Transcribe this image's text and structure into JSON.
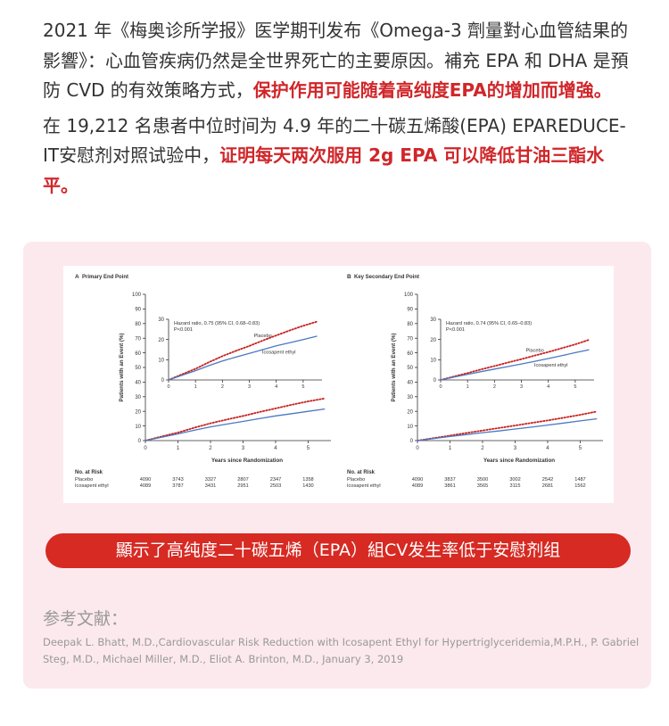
{
  "intro": {
    "p1_a": "2021 年《梅奥诊所学报》医学期刊发布《Omega-3 劑量對心血管結果的影響》：心血管疾病仍然是全世界死亡的主要原因。補充 EPA 和 DHA 是預防 CVD 的有效策略方式，",
    "p1_hl": "保护作用可能随着高纯度EPA的增加而增強。",
    "p2_a": "在 19,212 名患者中位时间为 4.9 年的二十碳五烯酸(EPA) EPAREDUCE-IT安慰剂对照试验中，",
    "p2_hl": "证明每天两次服用 2g EPA 可以降低甘油三酯水平。"
  },
  "banner_text": "顯示了高纯度二十碳五烯（EPA）組CV发生率低于安慰剂组",
  "reference": {
    "heading": "参考文献：",
    "body": "Deepak L. Bhatt, M.D.,Cardiovascular Risk Reduction with Icosapent Ethyl for Hypertriglyceridemia,M.P.H., P. Gabriel Steg, M.D., Michael Miller, M.D., Eliot A. Brinton, M.D., January 3, 2019"
  },
  "colors": {
    "placebo": "#c8201e",
    "icosapent": "#4a78c2",
    "accent": "#d0262a",
    "card_bg": "#fce9ee"
  },
  "chart_data": [
    {
      "type": "line",
      "panel_label": "A",
      "panel_title": "Primary End Point",
      "xlabel": "Years since Randomization",
      "ylabel": "Patients with an Event (%)",
      "xlim": [
        0,
        5.7
      ],
      "ylim": [
        0,
        100
      ],
      "x_ticks": [
        0,
        1,
        2,
        3,
        4,
        5
      ],
      "y_ticks": [
        0,
        10,
        20,
        30,
        40,
        50,
        60,
        70,
        80,
        90,
        100
      ],
      "series": [
        {
          "name": "Placebo",
          "style": "dotted",
          "x": [
            0,
            0.5,
            1,
            1.5,
            2,
            2.5,
            3,
            3.5,
            4,
            4.5,
            5,
            5.5
          ],
          "values": [
            0,
            2.8,
            5.5,
            8.8,
            11.8,
            14.4,
            16.8,
            19.5,
            22,
            24.5,
            26.8,
            28.8
          ]
        },
        {
          "name": "Icosapent ethyl",
          "style": "solid",
          "x": [
            0,
            0.5,
            1,
            1.5,
            2,
            2.5,
            3,
            3.5,
            4,
            4.5,
            5,
            5.5
          ],
          "values": [
            0,
            2.3,
            4.6,
            7.1,
            9.4,
            11.3,
            13.1,
            15,
            16.9,
            18.4,
            20,
            21.6
          ]
        }
      ],
      "inset": {
        "hazard_text": "Hazard ratio, 0.75 (95% CI, 0.68–0.83)",
        "p_text": "P<0.001",
        "ylim": [
          0,
          30
        ],
        "y_ticks": [
          0,
          10,
          20,
          30
        ],
        "x_ticks": [
          0,
          1,
          2,
          3,
          4,
          5
        ],
        "label_placebo": "Placebo",
        "label_icosapent": "Icosapent ethyl"
      },
      "at_risk": {
        "heading": "No. at Risk",
        "rows": [
          {
            "label": "Placebo",
            "values": [
              "4090",
              "3743",
              "3327",
              "2807",
              "2347",
              "1358"
            ]
          },
          {
            "label": "Icosapent ethyl",
            "values": [
              "4089",
              "3787",
              "3431",
              "2951",
              "2503",
              "1430"
            ]
          }
        ]
      }
    },
    {
      "type": "line",
      "panel_label": "B",
      "panel_title": "Key Secondary End Point",
      "xlabel": "Years since Randomization",
      "ylabel": "Patients with an Event (%)",
      "xlim": [
        0,
        5.7
      ],
      "ylim": [
        0,
        100
      ],
      "x_ticks": [
        0,
        1,
        2,
        3,
        4,
        5
      ],
      "y_ticks": [
        0,
        10,
        20,
        30,
        40,
        50,
        60,
        70,
        80,
        90,
        100
      ],
      "series": [
        {
          "name": "Placebo",
          "style": "dotted",
          "x": [
            0,
            0.5,
            1,
            1.5,
            2,
            2.5,
            3,
            3.5,
            4,
            4.5,
            5,
            5.5
          ],
          "values": [
            0,
            1.7,
            3.4,
            5.2,
            6.9,
            8.6,
            10.3,
            12.1,
            13.8,
            15.7,
            17.6,
            19.8
          ]
        },
        {
          "name": "Icosapent ethyl",
          "style": "solid",
          "x": [
            0,
            0.5,
            1,
            1.5,
            2,
            2.5,
            3,
            3.5,
            4,
            4.5,
            5,
            5.5
          ],
          "values": [
            0,
            1.4,
            2.8,
            4.1,
            5.4,
            6.6,
            7.9,
            9.2,
            10.6,
            12,
            13.5,
            14.9
          ]
        }
      ],
      "inset": {
        "hazard_text": "Hazard ratio, 0.74 (95% CI, 0.65–0.83)",
        "p_text": "P<0.001",
        "ylim": [
          0,
          30
        ],
        "y_ticks": [
          0,
          10,
          20,
          30
        ],
        "x_ticks": [
          0,
          1,
          2,
          3,
          4,
          5
        ],
        "label_placebo": "Placebo",
        "label_icosapent": "Icosapent ethyl"
      },
      "at_risk": {
        "heading": "No. at Risk",
        "rows": [
          {
            "label": "Placebo",
            "values": [
              "4090",
              "3837",
              "3500",
              "3002",
              "2542",
              "1487"
            ]
          },
          {
            "label": "Icosapent ethyl",
            "values": [
              "4089",
              "3861",
              "3565",
              "3115",
              "2681",
              "1562"
            ]
          }
        ]
      }
    }
  ]
}
